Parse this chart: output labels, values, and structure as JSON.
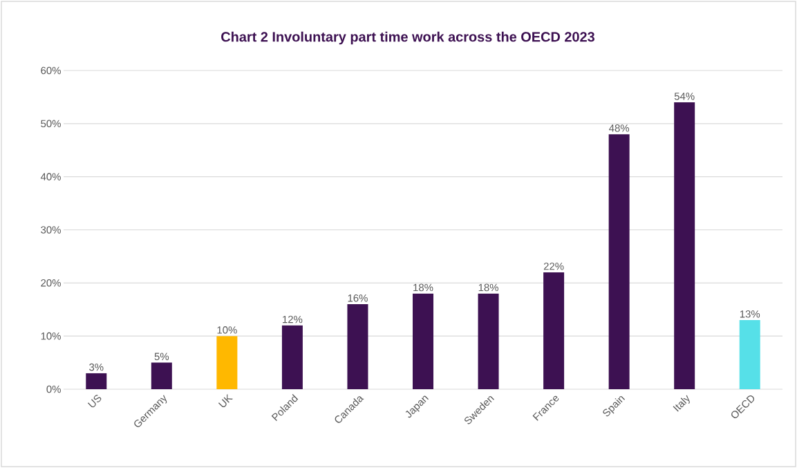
{
  "chart_data": {
    "type": "bar",
    "title": "Chart 2 Involuntary part time work across the OECD 2023",
    "categories": [
      "US",
      "Germany",
      "UK",
      "Poland",
      "Canada",
      "Japan",
      "Sweden",
      "France",
      "Spain",
      "Italy",
      "OECD"
    ],
    "values": [
      3,
      5,
      10,
      12,
      16,
      18,
      18,
      22,
      48,
      54,
      13
    ],
    "colors": [
      "#3d1152",
      "#3d1152",
      "#ffb800",
      "#3d1152",
      "#3d1152",
      "#3d1152",
      "#3d1152",
      "#3d1152",
      "#3d1152",
      "#3d1152",
      "#56e0e8"
    ],
    "value_labels": [
      "3%",
      "5%",
      "10%",
      "12%",
      "16%",
      "18%",
      "18%",
      "22%",
      "48%",
      "54%",
      "13%"
    ],
    "ylim": [
      0,
      60
    ],
    "yticks": [
      {
        "value": 0,
        "label": "0%"
      },
      {
        "value": 10,
        "label": "10%"
      },
      {
        "value": 20,
        "label": "20%"
      },
      {
        "value": 30,
        "label": "30%"
      },
      {
        "value": 40,
        "label": "40%"
      },
      {
        "value": 50,
        "label": "50%"
      },
      {
        "value": 60,
        "label": "60%"
      }
    ],
    "grid": "y"
  }
}
